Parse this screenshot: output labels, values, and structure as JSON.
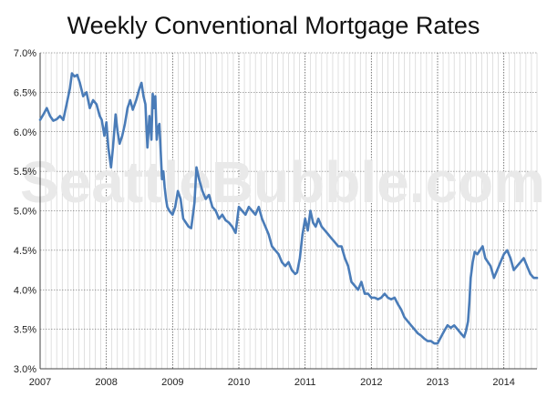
{
  "chart_data": {
    "type": "line",
    "title": "Weekly Conventional Mortgage Rates",
    "watermark": "SeattleBubble.com",
    "xlabel": "",
    "ylabel": "",
    "xlim": [
      2007.0,
      2014.5
    ],
    "ylim": [
      3.0,
      7.0
    ],
    "x_ticks": [
      2007,
      2008,
      2009,
      2010,
      2011,
      2012,
      2013,
      2014
    ],
    "x_tick_labels": [
      "2007",
      "2008",
      "2009",
      "2010",
      "2011",
      "2012",
      "2013",
      "2014"
    ],
    "y_ticks": [
      3.0,
      3.5,
      4.0,
      4.5,
      5.0,
      5.5,
      6.0,
      6.5,
      7.0
    ],
    "y_tick_labels": [
      "3.0%",
      "3.5%",
      "4.0%",
      "4.5%",
      "5.0%",
      "5.5%",
      "6.0%",
      "6.5%",
      "7.0%"
    ],
    "grid": {
      "major_x": true,
      "minor_x_monthly": true,
      "major_y": true
    },
    "colors": {
      "line": "#4a7cb8",
      "grid_major": "#555555",
      "grid_minor": "#cccccc",
      "axis": "#444444"
    },
    "series": [
      {
        "name": "",
        "x": [
          2007.0,
          2007.05,
          2007.1,
          2007.15,
          2007.2,
          2007.25,
          2007.3,
          2007.35,
          2007.4,
          2007.45,
          2007.48,
          2007.52,
          2007.56,
          2007.6,
          2007.65,
          2007.7,
          2007.75,
          2007.8,
          2007.85,
          2007.9,
          2007.93,
          2007.97,
          2008.0,
          2008.03,
          2008.07,
          2008.1,
          2008.14,
          2008.17,
          2008.2,
          2008.24,
          2008.28,
          2008.32,
          2008.36,
          2008.4,
          2008.45,
          2008.5,
          2008.53,
          2008.56,
          2008.59,
          2008.62,
          2008.65,
          2008.68,
          2008.7,
          2008.72,
          2008.74,
          2008.76,
          2008.78,
          2008.8,
          2008.82,
          2008.84,
          2008.86,
          2008.88,
          2008.9,
          2008.92,
          2008.95,
          2009.0,
          2009.04,
          2009.08,
          2009.12,
          2009.16,
          2009.2,
          2009.24,
          2009.28,
          2009.3,
          2009.33,
          2009.36,
          2009.4,
          2009.45,
          2009.5,
          2009.55,
          2009.6,
          2009.65,
          2009.7,
          2009.75,
          2009.8,
          2009.85,
          2009.9,
          2009.95,
          2010.0,
          2010.05,
          2010.1,
          2010.15,
          2010.2,
          2010.25,
          2010.3,
          2010.35,
          2010.4,
          2010.45,
          2010.5,
          2010.55,
          2010.6,
          2010.65,
          2010.7,
          2010.75,
          2010.8,
          2010.85,
          2010.88,
          2010.92,
          2010.96,
          2011.0,
          2011.04,
          2011.08,
          2011.12,
          2011.16,
          2011.2,
          2011.25,
          2011.3,
          2011.35,
          2011.4,
          2011.45,
          2011.5,
          2011.55,
          2011.6,
          2011.65,
          2011.7,
          2011.75,
          2011.8,
          2011.85,
          2011.9,
          2011.95,
          2012.0,
          2012.05,
          2012.1,
          2012.15,
          2012.2,
          2012.25,
          2012.3,
          2012.35,
          2012.4,
          2012.45,
          2012.5,
          2012.55,
          2012.6,
          2012.65,
          2012.7,
          2012.75,
          2012.8,
          2012.85,
          2012.9,
          2012.95,
          2013.0,
          2013.05,
          2013.1,
          2013.15,
          2013.2,
          2013.25,
          2013.3,
          2013.35,
          2013.4,
          2013.43,
          2013.46,
          2013.48,
          2013.5,
          2013.53,
          2013.56,
          2013.6,
          2013.64,
          2013.68,
          2013.72,
          2013.76,
          2013.8,
          2013.85,
          2013.9,
          2013.95,
          2014.0,
          2014.05,
          2014.1,
          2014.15,
          2014.2,
          2014.25,
          2014.3,
          2014.35,
          2014.4,
          2014.45,
          2014.5
        ],
        "values": [
          6.15,
          6.22,
          6.3,
          6.2,
          6.14,
          6.16,
          6.2,
          6.15,
          6.35,
          6.55,
          6.74,
          6.7,
          6.72,
          6.62,
          6.45,
          6.5,
          6.3,
          6.4,
          6.35,
          6.2,
          6.15,
          5.95,
          6.12,
          5.8,
          5.55,
          5.8,
          6.22,
          6.0,
          5.85,
          5.95,
          6.1,
          6.3,
          6.4,
          6.28,
          6.4,
          6.55,
          6.62,
          6.45,
          6.35,
          5.8,
          6.2,
          5.9,
          6.48,
          6.3,
          6.45,
          5.9,
          6.05,
          6.1,
          5.75,
          5.4,
          5.5,
          5.3,
          5.15,
          5.05,
          5.0,
          4.95,
          5.05,
          5.25,
          5.15,
          4.9,
          4.85,
          4.8,
          4.78,
          4.9,
          5.1,
          5.55,
          5.4,
          5.25,
          5.15,
          5.2,
          5.05,
          5.0,
          4.9,
          4.95,
          4.88,
          4.85,
          4.8,
          4.72,
          5.05,
          5.0,
          4.95,
          5.05,
          5.0,
          4.95,
          5.05,
          4.9,
          4.8,
          4.7,
          4.55,
          4.5,
          4.45,
          4.35,
          4.3,
          4.35,
          4.25,
          4.2,
          4.22,
          4.4,
          4.7,
          4.9,
          4.75,
          5.0,
          4.85,
          4.8,
          4.9,
          4.8,
          4.75,
          4.7,
          4.65,
          4.6,
          4.55,
          4.55,
          4.4,
          4.3,
          4.1,
          4.05,
          4.0,
          4.1,
          3.95,
          3.95,
          3.9,
          3.9,
          3.88,
          3.9,
          3.95,
          3.9,
          3.88,
          3.9,
          3.82,
          3.75,
          3.65,
          3.6,
          3.55,
          3.5,
          3.45,
          3.42,
          3.38,
          3.35,
          3.35,
          3.32,
          3.32,
          3.4,
          3.48,
          3.55,
          3.52,
          3.55,
          3.5,
          3.45,
          3.4,
          3.48,
          3.6,
          3.85,
          4.15,
          4.35,
          4.48,
          4.45,
          4.5,
          4.55,
          4.4,
          4.35,
          4.3,
          4.15,
          4.25,
          4.35,
          4.45,
          4.5,
          4.4,
          4.25,
          4.3,
          4.35,
          4.4,
          4.3,
          4.2,
          4.15,
          4.15
        ]
      }
    ]
  }
}
